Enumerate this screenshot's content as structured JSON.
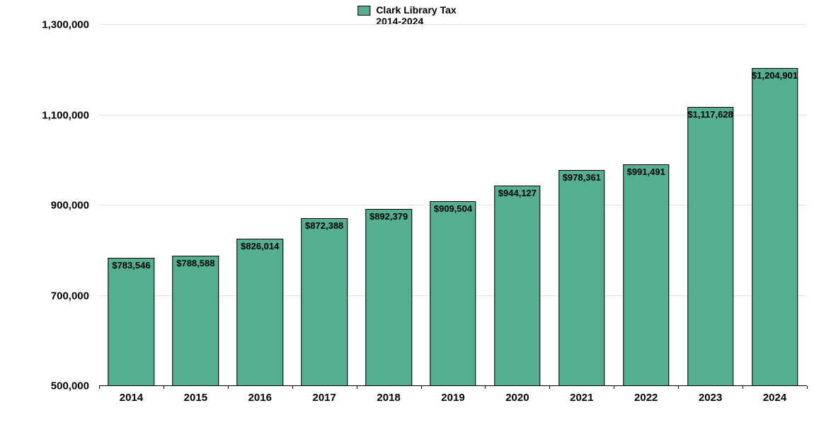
{
  "chart": {
    "type": "bar",
    "legend": {
      "swatch_color": "#55af8f",
      "line1": "Clark Library Tax",
      "line2": "2014-2024"
    },
    "background_color": "#ffffff",
    "grid_color": "#e3e3e3",
    "bar_color": "#55af8f",
    "bar_border_color": "#000000",
    "bar_width_ratio": 0.72,
    "ylim": [
      500000,
      1300000
    ],
    "ytick_step": 200000,
    "y_ticks": [
      {
        "v": 500000,
        "label": "500,000"
      },
      {
        "v": 700000,
        "label": "700,000"
      },
      {
        "v": 900000,
        "label": "900,000"
      },
      {
        "v": 1100000,
        "label": "1,100,000"
      },
      {
        "v": 1300000,
        "label": "1,300,000"
      }
    ],
    "categories": [
      "2014",
      "2015",
      "2016",
      "2017",
      "2018",
      "2019",
      "2020",
      "2021",
      "2022",
      "2023",
      "2024"
    ],
    "values": [
      783546,
      788588,
      826014,
      872388,
      892379,
      909504,
      944127,
      978361,
      991491,
      1117628,
      1204901
    ],
    "value_labels": [
      "$783,546",
      "$788,588",
      "$826,014",
      "$872,388",
      "$892,379",
      "$909,504",
      "$944,127",
      "$978,361",
      "$991,491",
      "$1,117,628",
      "$1,204,901"
    ],
    "label_fontsize": 13,
    "axis_fontsize": 15,
    "legend_fontsize": 14
  }
}
